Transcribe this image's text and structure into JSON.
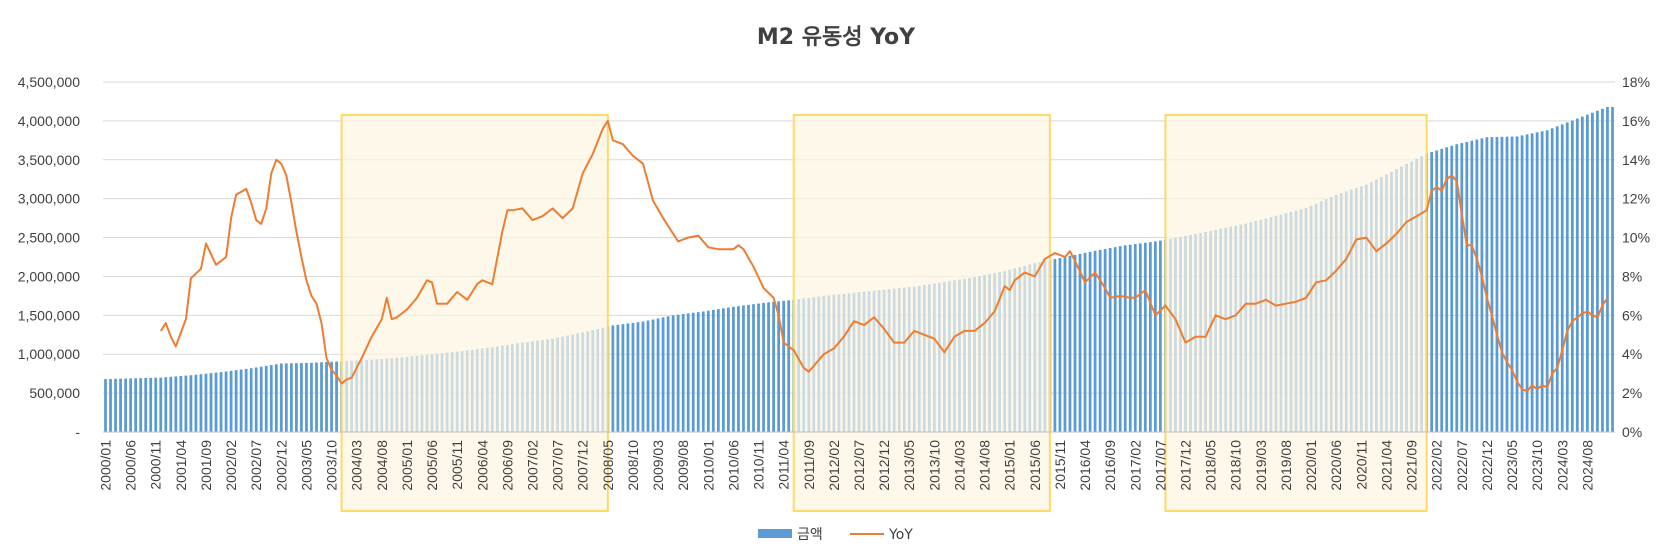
{
  "chart_data": {
    "type": "bar",
    "title": "M2 유동성 YoY",
    "legend": {
      "placement": "bottom",
      "entries": [
        "금액",
        "YoY"
      ]
    },
    "grid": true,
    "colors": {
      "bar": "#5B9BD5",
      "line": "#ED7D31",
      "highlight_fill": "#FDF5E2",
      "highlight_stroke": "#FFD966"
    },
    "y_left": {
      "ylim": [
        0,
        4500000
      ],
      "tick_labels": [
        "-",
        "500,000",
        "1,000,000",
        "1,500,000",
        "2,000,000",
        "2,500,000",
        "3,000,000",
        "3,500,000",
        "4,000,000",
        "4,500,000"
      ]
    },
    "y_right": {
      "ylim": [
        0,
        18
      ],
      "unit": "%",
      "tick_labels": [
        "0%",
        "2%",
        "4%",
        "6%",
        "8%",
        "10%",
        "12%",
        "14%",
        "16%",
        "18%"
      ]
    },
    "x_range": [
      "2000/01",
      "2025/01"
    ],
    "x_tick_labels": [
      "2000/01",
      "2000/06",
      "2000/11",
      "2001/04",
      "2001/09",
      "2002/02",
      "2002/07",
      "2002/12",
      "2003/05",
      "2003/10",
      "2004/03",
      "2004/08",
      "2005/01",
      "2005/06",
      "2005/11",
      "2006/04",
      "2006/09",
      "2007/02",
      "2007/07",
      "2007/12",
      "2008/05",
      "2008/10",
      "2009/03",
      "2009/08",
      "2010/01",
      "2010/06",
      "2010/11",
      "2011/04",
      "2011/09",
      "2012/02",
      "2012/07",
      "2012/12",
      "2013/05",
      "2013/10",
      "2014/03",
      "2014/08",
      "2015/01",
      "2015/06",
      "2015/11",
      "2016/04",
      "2016/09",
      "2017/02",
      "2017/07",
      "2017/12",
      "2018/05",
      "2018/10",
      "2019/03",
      "2019/08",
      "2020/01",
      "2020/06",
      "2020/11",
      "2021/04",
      "2021/09",
      "2022/02",
      "2022/07",
      "2022/12",
      "2023/05",
      "2023/10",
      "2024/03",
      "2024/08"
    ],
    "series": [
      {
        "name": "금액",
        "type": "bar",
        "axis": "left",
        "anchors": [
          [
            "2000/01",
            680000
          ],
          [
            "2000/12",
            700000
          ],
          [
            "2001/06",
            730000
          ],
          [
            "2001/12",
            770000
          ],
          [
            "2002/06",
            820000
          ],
          [
            "2002/12",
            880000
          ],
          [
            "2003/06",
            890000
          ],
          [
            "2003/12",
            910000
          ],
          [
            "2004/06",
            930000
          ],
          [
            "2004/12",
            960000
          ],
          [
            "2005/06",
            1000000
          ],
          [
            "2005/12",
            1040000
          ],
          [
            "2006/06",
            1090000
          ],
          [
            "2006/12",
            1150000
          ],
          [
            "2007/06",
            1200000
          ],
          [
            "2007/12",
            1280000
          ],
          [
            "2008/06",
            1370000
          ],
          [
            "2008/12",
            1420000
          ],
          [
            "2009/06",
            1500000
          ],
          [
            "2009/12",
            1550000
          ],
          [
            "2010/06",
            1610000
          ],
          [
            "2010/12",
            1660000
          ],
          [
            "2011/06",
            1700000
          ],
          [
            "2011/12",
            1750000
          ],
          [
            "2012/06",
            1790000
          ],
          [
            "2012/12",
            1830000
          ],
          [
            "2013/06",
            1870000
          ],
          [
            "2013/12",
            1930000
          ],
          [
            "2014/06",
            1990000
          ],
          [
            "2014/12",
            2070000
          ],
          [
            "2015/06",
            2170000
          ],
          [
            "2015/12",
            2250000
          ],
          [
            "2016/06",
            2330000
          ],
          [
            "2016/12",
            2400000
          ],
          [
            "2017/06",
            2450000
          ],
          [
            "2017/12",
            2520000
          ],
          [
            "2018/06",
            2600000
          ],
          [
            "2018/12",
            2680000
          ],
          [
            "2019/06",
            2780000
          ],
          [
            "2019/12",
            2880000
          ],
          [
            "2020/06",
            3050000
          ],
          [
            "2020/12",
            3180000
          ],
          [
            "2021/06",
            3380000
          ],
          [
            "2021/12",
            3580000
          ],
          [
            "2022/06",
            3700000
          ],
          [
            "2022/12",
            3790000
          ],
          [
            "2023/06",
            3800000
          ],
          [
            "2023/12",
            3880000
          ],
          [
            "2024/06",
            4030000
          ],
          [
            "2024/12",
            4180000
          ]
        ]
      },
      {
        "name": "YoY",
        "type": "line",
        "axis": "right",
        "points": [
          [
            "2000/12",
            5.2
          ],
          [
            "2001/01",
            5.6
          ],
          [
            "2001/02",
            4.9
          ],
          [
            "2001/03",
            4.4
          ],
          [
            "2001/05",
            5.8
          ],
          [
            "2001/06",
            7.9
          ],
          [
            "2001/08",
            8.4
          ],
          [
            "2001/09",
            9.7
          ],
          [
            "2001/11",
            8.6
          ],
          [
            "2002/01",
            9.0
          ],
          [
            "2002/02",
            11.0
          ],
          [
            "2002/03",
            12.2
          ],
          [
            "2002/05",
            12.5
          ],
          [
            "2002/06",
            11.8
          ],
          [
            "2002/07",
            10.9
          ],
          [
            "2002/08",
            10.7
          ],
          [
            "2002/09",
            11.5
          ],
          [
            "2002/10",
            13.3
          ],
          [
            "2002/11",
            14.0
          ],
          [
            "2002/12",
            13.8
          ],
          [
            "2003/01",
            13.2
          ],
          [
            "2003/02",
            11.8
          ],
          [
            "2003/03",
            10.3
          ],
          [
            "2003/04",
            9.0
          ],
          [
            "2003/05",
            7.8
          ],
          [
            "2003/06",
            7.0
          ],
          [
            "2003/07",
            6.6
          ],
          [
            "2003/08",
            5.6
          ],
          [
            "2003/09",
            3.8
          ],
          [
            "2003/10",
            3.2
          ],
          [
            "2003/11",
            2.9
          ],
          [
            "2003/12",
            2.5
          ],
          [
            "2004/01",
            2.7
          ],
          [
            "2004/02",
            2.8
          ],
          [
            "2004/04",
            3.8
          ],
          [
            "2004/06",
            4.9
          ],
          [
            "2004/08",
            5.8
          ],
          [
            "2004/09",
            6.9
          ],
          [
            "2004/10",
            5.8
          ],
          [
            "2004/11",
            5.9
          ],
          [
            "2005/01",
            6.3
          ],
          [
            "2005/03",
            6.9
          ],
          [
            "2005/05",
            7.8
          ],
          [
            "2005/06",
            7.7
          ],
          [
            "2005/07",
            6.6
          ],
          [
            "2005/09",
            6.6
          ],
          [
            "2005/11",
            7.2
          ],
          [
            "2006/01",
            6.8
          ],
          [
            "2006/02",
            7.2
          ],
          [
            "2006/03",
            7.6
          ],
          [
            "2006/04",
            7.8
          ],
          [
            "2006/06",
            7.6
          ],
          [
            "2006/08",
            10.3
          ],
          [
            "2006/09",
            11.4
          ],
          [
            "2006/10",
            11.4
          ],
          [
            "2006/12",
            11.5
          ],
          [
            "2007/02",
            10.9
          ],
          [
            "2007/04",
            11.1
          ],
          [
            "2007/06",
            11.5
          ],
          [
            "2007/08",
            11.0
          ],
          [
            "2007/10",
            11.5
          ],
          [
            "2007/12",
            13.3
          ],
          [
            "2008/02",
            14.3
          ],
          [
            "2008/04",
            15.6
          ],
          [
            "2008/05",
            16.0
          ],
          [
            "2008/06",
            15.0
          ],
          [
            "2008/08",
            14.8
          ],
          [
            "2008/10",
            14.2
          ],
          [
            "2008/12",
            13.8
          ],
          [
            "2009/02",
            11.9
          ],
          [
            "2009/04",
            11.0
          ],
          [
            "2009/06",
            10.2
          ],
          [
            "2009/07",
            9.8
          ],
          [
            "2009/08",
            9.9
          ],
          [
            "2009/09",
            10.0
          ],
          [
            "2009/11",
            10.1
          ],
          [
            "2010/01",
            9.5
          ],
          [
            "2010/03",
            9.4
          ],
          [
            "2010/06",
            9.4
          ],
          [
            "2010/07",
            9.6
          ],
          [
            "2010/08",
            9.4
          ],
          [
            "2010/10",
            8.5
          ],
          [
            "2010/12",
            7.4
          ],
          [
            "2011/02",
            6.9
          ],
          [
            "2011/03",
            6.0
          ],
          [
            "2011/04",
            4.6
          ],
          [
            "2011/06",
            4.2
          ],
          [
            "2011/08",
            3.3
          ],
          [
            "2011/09",
            3.1
          ],
          [
            "2011/10",
            3.4
          ],
          [
            "2011/12",
            4.0
          ],
          [
            "2012/02",
            4.3
          ],
          [
            "2012/04",
            4.9
          ],
          [
            "2012/06",
            5.7
          ],
          [
            "2012/08",
            5.5
          ],
          [
            "2012/10",
            5.9
          ],
          [
            "2012/12",
            5.3
          ],
          [
            "2013/02",
            4.6
          ],
          [
            "2013/04",
            4.6
          ],
          [
            "2013/06",
            5.2
          ],
          [
            "2013/08",
            5.0
          ],
          [
            "2013/10",
            4.8
          ],
          [
            "2013/12",
            4.1
          ],
          [
            "2014/02",
            4.9
          ],
          [
            "2014/04",
            5.2
          ],
          [
            "2014/06",
            5.2
          ],
          [
            "2014/08",
            5.6
          ],
          [
            "2014/10",
            6.2
          ],
          [
            "2014/12",
            7.5
          ],
          [
            "2015/01",
            7.3
          ],
          [
            "2015/02",
            7.8
          ],
          [
            "2015/04",
            8.2
          ],
          [
            "2015/06",
            8.0
          ],
          [
            "2015/08",
            8.9
          ],
          [
            "2015/10",
            9.2
          ],
          [
            "2015/12",
            9.0
          ],
          [
            "2016/01",
            9.3
          ],
          [
            "2016/02",
            8.8
          ],
          [
            "2016/04",
            7.7
          ],
          [
            "2016/06",
            8.2
          ],
          [
            "2016/08",
            7.4
          ],
          [
            "2016/09",
            6.9
          ],
          [
            "2016/11",
            7.0
          ],
          [
            "2017/01",
            6.9
          ],
          [
            "2017/02",
            6.9
          ],
          [
            "2017/04",
            7.3
          ],
          [
            "2017/06",
            6.0
          ],
          [
            "2017/08",
            6.5
          ],
          [
            "2017/10",
            5.8
          ],
          [
            "2017/12",
            4.6
          ],
          [
            "2018/02",
            4.9
          ],
          [
            "2018/04",
            4.9
          ],
          [
            "2018/06",
            6.0
          ],
          [
            "2018/08",
            5.8
          ],
          [
            "2018/10",
            6.0
          ],
          [
            "2018/12",
            6.6
          ],
          [
            "2019/02",
            6.6
          ],
          [
            "2019/04",
            6.8
          ],
          [
            "2019/06",
            6.5
          ],
          [
            "2019/08",
            6.6
          ],
          [
            "2019/10",
            6.7
          ],
          [
            "2019/12",
            6.9
          ],
          [
            "2020/02",
            7.7
          ],
          [
            "2020/04",
            7.8
          ],
          [
            "2020/06",
            8.3
          ],
          [
            "2020/08",
            8.9
          ],
          [
            "2020/10",
            9.9
          ],
          [
            "2020/12",
            10.0
          ],
          [
            "2021/02",
            9.3
          ],
          [
            "2021/04",
            9.7
          ],
          [
            "2021/06",
            10.2
          ],
          [
            "2021/08",
            10.8
          ],
          [
            "2021/10",
            11.1
          ],
          [
            "2021/12",
            11.4
          ],
          [
            "2022/01",
            12.4
          ],
          [
            "2022/02",
            12.6
          ],
          [
            "2022/03",
            12.4
          ],
          [
            "2022/04",
            13.0
          ],
          [
            "2022/05",
            13.2
          ],
          [
            "2022/06",
            12.9
          ],
          [
            "2022/07",
            11.2
          ],
          [
            "2022/08",
            9.6
          ],
          [
            "2022/09",
            9.6
          ],
          [
            "2022/10",
            8.9
          ],
          [
            "2022/11",
            8.0
          ],
          [
            "2022/12",
            6.9
          ],
          [
            "2023/01",
            6.0
          ],
          [
            "2023/02",
            5.0
          ],
          [
            "2023/03",
            4.1
          ],
          [
            "2023/04",
            3.6
          ],
          [
            "2023/05",
            3.2
          ],
          [
            "2023/06",
            2.6
          ],
          [
            "2023/07",
            2.2
          ],
          [
            "2023/08",
            2.1
          ],
          [
            "2023/09",
            2.4
          ],
          [
            "2023/10",
            2.2
          ],
          [
            "2023/11",
            2.4
          ],
          [
            "2023/12",
            2.3
          ],
          [
            "2024/01",
            3.0
          ],
          [
            "2024/02",
            3.3
          ],
          [
            "2024/03",
            4.2
          ],
          [
            "2024/04",
            5.2
          ],
          [
            "2024/05",
            5.7
          ],
          [
            "2024/06",
            5.9
          ],
          [
            "2024/07",
            6.1
          ],
          [
            "2024/08",
            6.2
          ],
          [
            "2024/09",
            6.0
          ],
          [
            "2024/10",
            5.9
          ],
          [
            "2024/11",
            6.5
          ],
          [
            "2024/12",
            6.9
          ]
        ]
      }
    ],
    "highlight_periods": [
      [
        "2003/12",
        "2008/05"
      ],
      [
        "2011/06",
        "2015/09"
      ],
      [
        "2017/08",
        "2021/12"
      ]
    ]
  }
}
